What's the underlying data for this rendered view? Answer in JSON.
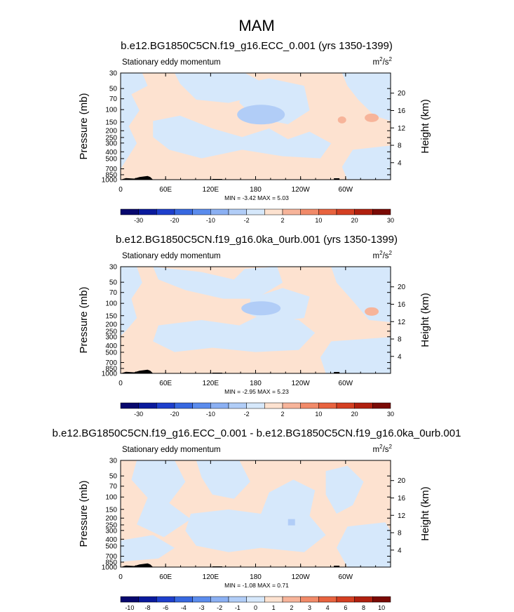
{
  "figure_title": "MAM",
  "panel_subtitle": "Stationary eddy momentum",
  "units_base": "m",
  "units_exp1": "2",
  "units_mid": "/s",
  "units_exp2": "2",
  "y_label_left": "Pressure (mb)",
  "y_label_right": "Height (km)",
  "colors": {
    "ocean_blue": "#d6e8fb",
    "ocean_mid": "#b1cdf7",
    "pos_peach": "#fde2d0",
    "pos_salmon": "#f7b49a",
    "terrain": "#000000"
  },
  "palette": [
    "#08086e",
    "#0a1a9c",
    "#1e3fcc",
    "#3768e0",
    "#5b8ced",
    "#8bb0f3",
    "#b1cdf7",
    "#d6e8fb",
    "#fde2d0",
    "#f7b49a",
    "#f18a69",
    "#e8633f",
    "#d43f22",
    "#b0200f",
    "#7a0a05"
  ],
  "chart_data": [
    {
      "type": "heatmap",
      "title": "b.e12.BG1850C5CN.f19_g16.ECC_0.001 (yrs 1350-1399)",
      "subtitle": "Stationary eddy momentum",
      "units": "m2/s2",
      "xlabel": "",
      "ylabel": "Pressure (mb)",
      "ylabel_right": "Height (km)",
      "x_ticks": [
        "0",
        "60E",
        "120E",
        "180",
        "120W",
        "60W"
      ],
      "y_ticks": [
        "30",
        "50",
        "70",
        "100",
        "150",
        "200",
        "250",
        "300",
        "400",
        "500",
        "700",
        "850",
        "1000"
      ],
      "y_right_ticks": [
        "20",
        "16",
        "12",
        "8",
        "4"
      ],
      "stats": "MIN = -3.42   MAX =  5.03",
      "colorbar_labels": [
        "-30",
        "-20",
        "-10",
        "-2",
        "2",
        "10",
        "20",
        "30"
      ]
    },
    {
      "type": "heatmap",
      "title": "b.e12.BG1850C5CN.f19_g16.0ka_0urb.001 (yrs 1350-1399)",
      "subtitle": "Stationary eddy momentum",
      "units": "m2/s2",
      "xlabel": "",
      "ylabel": "Pressure (mb)",
      "ylabel_right": "Height (km)",
      "x_ticks": [
        "0",
        "60E",
        "120E",
        "180",
        "120W",
        "60W"
      ],
      "y_ticks": [
        "30",
        "50",
        "70",
        "100",
        "150",
        "200",
        "250",
        "300",
        "400",
        "500",
        "700",
        "850",
        "1000"
      ],
      "y_right_ticks": [
        "20",
        "16",
        "12",
        "8",
        "4"
      ],
      "stats": "MIN = -2.95   MAX =  5.23",
      "colorbar_labels": [
        "-30",
        "-20",
        "-10",
        "-2",
        "2",
        "10",
        "20",
        "30"
      ]
    },
    {
      "type": "heatmap",
      "title": "b.e12.BG1850C5CN.f19_g16.ECC_0.001 - b.e12.BG1850C5CN.f19_g16.0ka_0urb.001",
      "subtitle": "Stationary eddy momentum",
      "units": "m2/s2",
      "xlabel": "",
      "ylabel": "Pressure (mb)",
      "ylabel_right": "Height (km)",
      "x_ticks": [
        "0",
        "60E",
        "120E",
        "180",
        "120W",
        "60W"
      ],
      "y_ticks": [
        "30",
        "50",
        "70",
        "100",
        "150",
        "200",
        "250",
        "300",
        "400",
        "500",
        "700",
        "850",
        "1000"
      ],
      "y_right_ticks": [
        "20",
        "16",
        "12",
        "8",
        "4"
      ],
      "stats": "MIN = -1.08   MAX =  0.71",
      "colorbar_labels": [
        "-10",
        "-8",
        "-6",
        "-4",
        "-3",
        "-2",
        "-1",
        "0",
        "1",
        "2",
        "3",
        "4",
        "6",
        "8",
        "10"
      ]
    }
  ]
}
